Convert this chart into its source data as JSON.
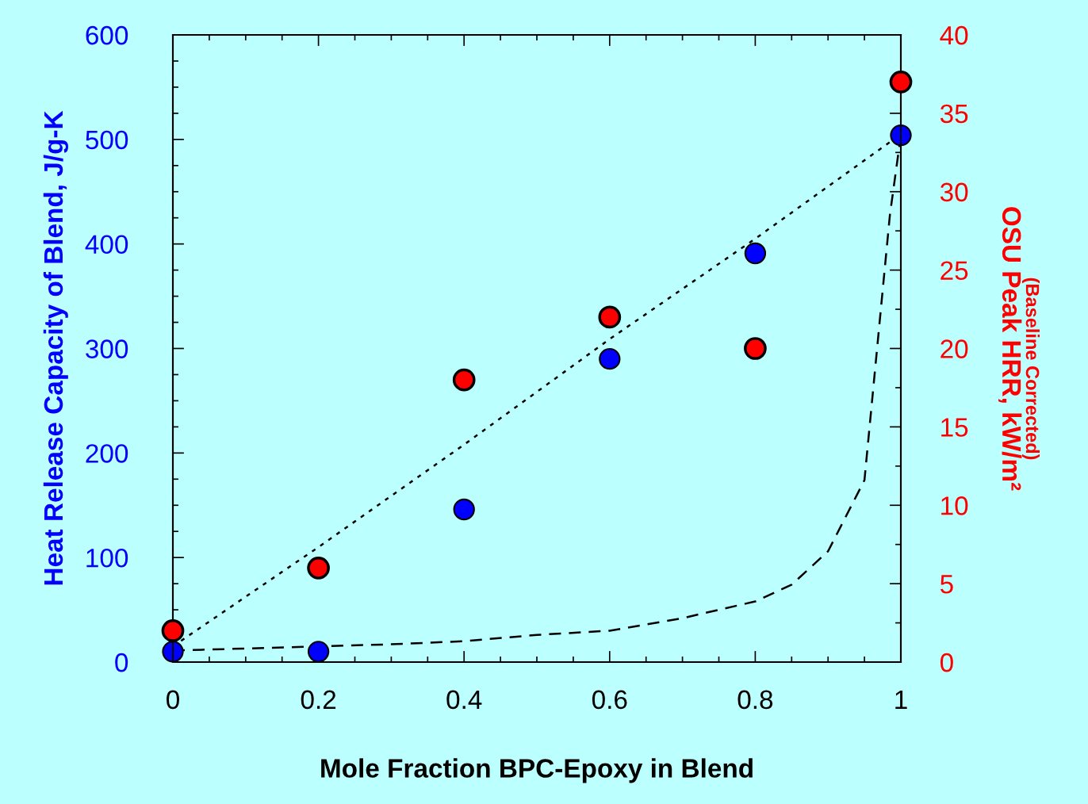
{
  "chart_data": {
    "type": "scatter",
    "xlabel": "Mole Fraction BPC-Epoxy in Blend",
    "ylabel": "Heat Release Capacity of Blend, J/g-K",
    "y2label": "OSU Peak HRR, kW/m²",
    "annotations": [
      "(Baseline Corrected)"
    ],
    "xlim": [
      0,
      1
    ],
    "xticks": [
      0,
      0.2,
      0.4,
      0.6,
      0.8,
      1
    ],
    "ylim": [
      0,
      600
    ],
    "yticks": [
      0,
      100,
      200,
      300,
      400,
      500,
      600
    ],
    "y2lim": [
      0,
      40
    ],
    "y2ticks": [
      0,
      5,
      10,
      15,
      20,
      25,
      30,
      35,
      40
    ],
    "grid": false,
    "legend": false,
    "marker": "circle",
    "series": [
      {
        "type": "line",
        "marker": "none",
        "line_style": "dotted",
        "color": "#000000",
        "x": [
          0,
          0.2,
          0.4,
          0.6,
          0.8,
          1
        ],
        "values": [
          15,
          110,
          208,
          309,
          405,
          505
        ]
      },
      {
        "type": "line",
        "marker": "none",
        "line_style": "dashed",
        "color": "#000000",
        "x": [
          0,
          0.1,
          0.3,
          0.4,
          0.5,
          0.6,
          0.7,
          0.8,
          0.85,
          0.9,
          0.95,
          0.985,
          1
        ],
        "values": [
          11,
          13,
          17,
          20,
          26,
          30,
          42,
          58,
          74,
          106,
          174,
          428,
          504
        ]
      },
      {
        "color": "#0000ff",
        "x": [
          0,
          0.2,
          0.4,
          0.6,
          0.8,
          1
        ],
        "values": [
          10,
          10,
          146,
          290,
          391,
          504
        ]
      },
      {
        "axis": "y2",
        "color": "#ff0000",
        "x": [
          0,
          0.2,
          0.4,
          0.6,
          0.8,
          1
        ],
        "values": [
          2,
          6,
          18,
          22,
          20,
          37
        ]
      }
    ]
  }
}
